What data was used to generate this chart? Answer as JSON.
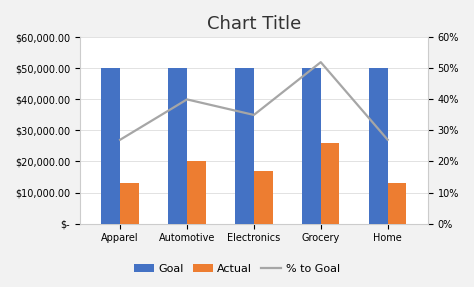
{
  "title": "Chart Title",
  "categories": [
    "Apparel",
    "Automotive",
    "Electronics",
    "Grocery",
    "Home"
  ],
  "goal": [
    50000,
    50000,
    50000,
    50000,
    50000
  ],
  "actual": [
    13000,
    20000,
    17000,
    26000,
    13000
  ],
  "pct_to_goal": [
    0.27,
    0.4,
    0.35,
    0.52,
    0.27
  ],
  "goal_color": "#4472C4",
  "actual_color": "#ED7D31",
  "line_color": "#A6A6A6",
  "background_color": "#F2F2F2",
  "plot_bg_color": "#FFFFFF",
  "ylim_left": [
    0,
    60000
  ],
  "ylim_right": [
    0,
    0.6
  ],
  "y_left_ticks": [
    0,
    10000,
    20000,
    30000,
    40000,
    50000,
    60000
  ],
  "y_right_ticks": [
    0.0,
    0.1,
    0.2,
    0.3,
    0.4,
    0.5,
    0.6
  ],
  "legend_labels": [
    "Goal",
    "Actual",
    "% to Goal"
  ],
  "title_fontsize": 13,
  "tick_fontsize": 7,
  "legend_fontsize": 8,
  "bar_width": 0.28
}
